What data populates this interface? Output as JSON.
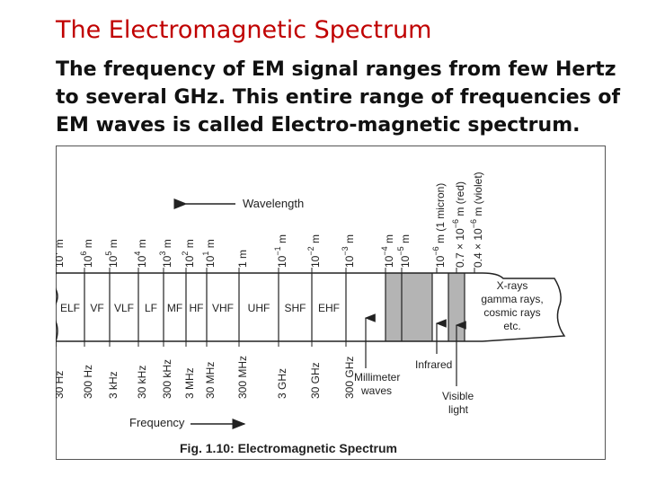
{
  "slide": {
    "title": "The Electromagnetic Spectrum",
    "paragraph": "The frequency of EM signal ranges from few Hertz to several GHz. This entire range of frequencies of EM waves is called Electro-magnetic spectrum."
  },
  "figure": {
    "wavelength_label": "Wavelength",
    "frequency_label": "Frequency",
    "caption_bold": "Fig. 1.10:",
    "caption_rest": "Electromagnetic Spectrum",
    "wavelength_ticks": [
      {
        "base": "10",
        "exp": "7",
        "unit": "m"
      },
      {
        "base": "10",
        "exp": "6",
        "unit": "m"
      },
      {
        "base": "10",
        "exp": "5",
        "unit": "m"
      },
      {
        "base": "10",
        "exp": "4",
        "unit": "m"
      },
      {
        "base": "10",
        "exp": "3",
        "unit": "m"
      },
      {
        "base": "10",
        "exp": "2",
        "unit": "m"
      },
      {
        "base": "10",
        "exp": "1",
        "unit": "m"
      },
      {
        "base": "1 m",
        "exp": "",
        "unit": ""
      },
      {
        "base": "10",
        "exp": "−1",
        "unit": "m"
      },
      {
        "base": "10",
        "exp": "−2",
        "unit": "m"
      },
      {
        "base": "10",
        "exp": "−3",
        "unit": "m"
      },
      {
        "base": "10",
        "exp": "−4",
        "unit": "m"
      },
      {
        "base": "10",
        "exp": "−5",
        "unit": "m"
      },
      {
        "base": "10",
        "exp": "−6",
        "unit": "m (1 micron)"
      },
      {
        "base": "0.7 × 10",
        "exp": "−6",
        "unit": "m (red)"
      },
      {
        "base": "0.4 × 10",
        "exp": "−6",
        "unit": "m (violet)"
      }
    ],
    "bands": [
      "ELF",
      "VF",
      "VLF",
      "LF",
      "MF",
      "HF",
      "VHF",
      "UHF",
      "SHF",
      "EHF"
    ],
    "xray_lines": [
      "X-rays",
      "gamma rays,",
      "cosmic rays",
      "etc."
    ],
    "frequency_ticks": [
      "30 Hz",
      "300 Hz",
      "3 kHz",
      "30 kHz",
      "300 kHz",
      "3 MHz",
      "30 MHz",
      "300 MHz",
      "3 GHz",
      "30 GHz",
      "300 GHz"
    ],
    "millimeter_label": [
      "Millimeter",
      "waves"
    ],
    "infrared_label": "Infrared",
    "visible_label": [
      "Visible",
      "light"
    ]
  }
}
